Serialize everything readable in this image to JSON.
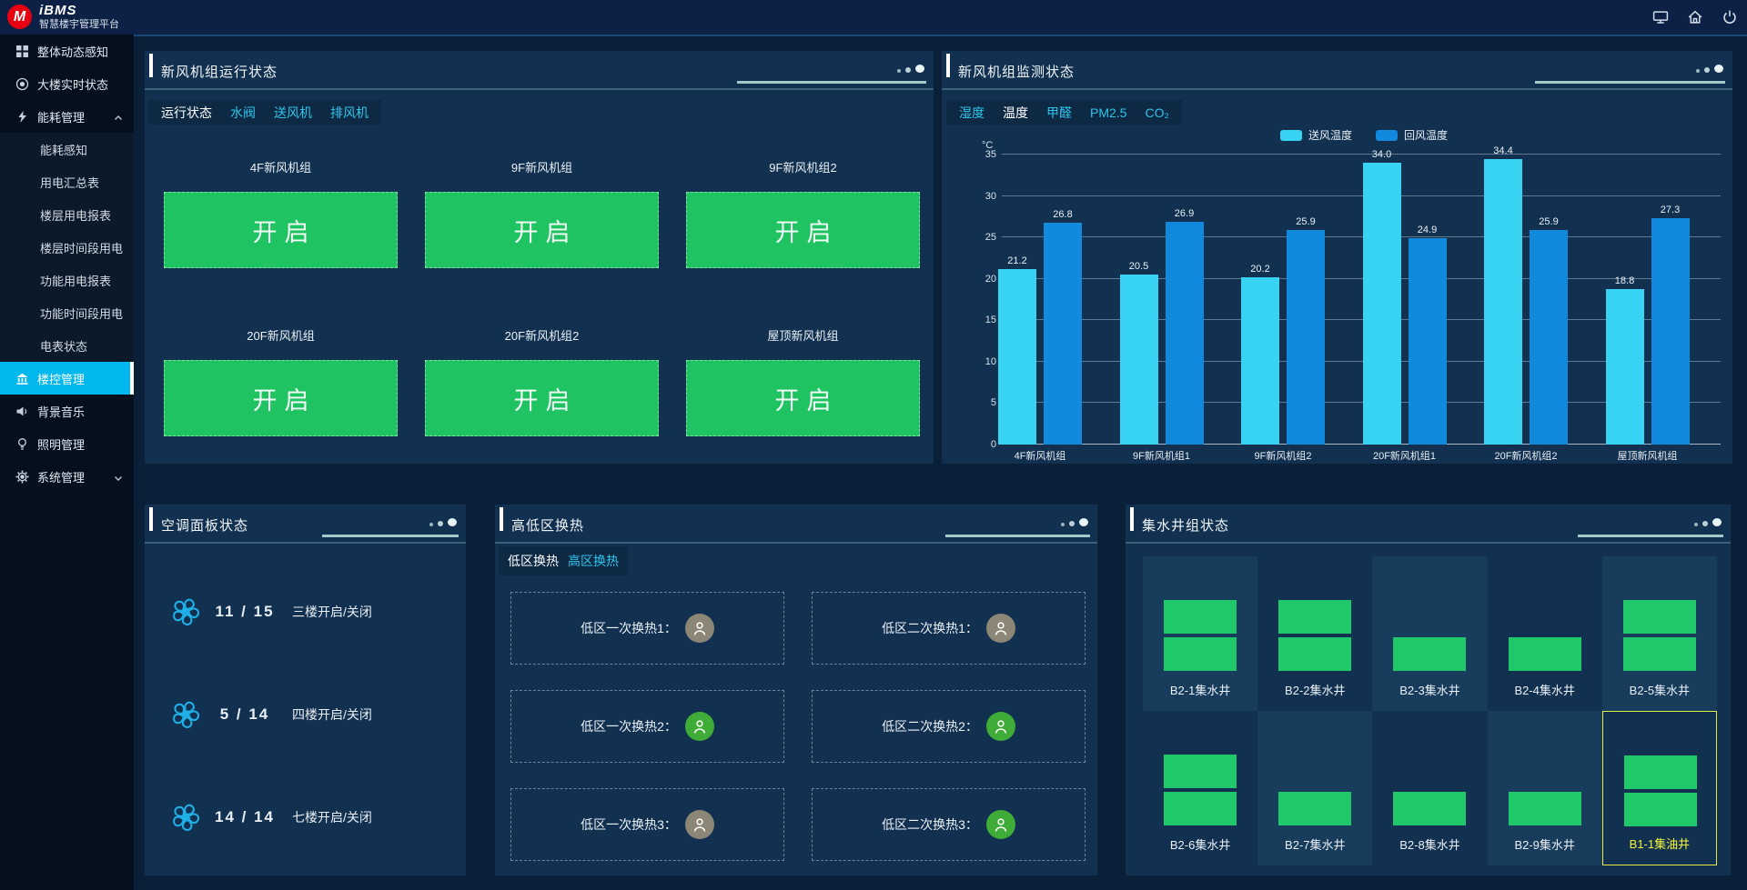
{
  "topbar": {
    "logo_text": "iBMS",
    "logo_subtitle": "智慧楼宇管理平台",
    "icons": [
      "monitor-icon",
      "home-icon",
      "power-icon"
    ]
  },
  "sidebar": {
    "items": [
      {
        "label": "整体动态感知",
        "icon": "grid-icon",
        "type": "item"
      },
      {
        "label": "大楼实时状态",
        "icon": "disc-icon",
        "type": "item"
      },
      {
        "label": "能耗管理",
        "icon": "lightning-icon",
        "type": "group",
        "state": "expanded",
        "children": [
          "能耗感知",
          "用电汇总表",
          "楼层用电报表",
          "楼层时间段用电",
          "功能用电报表",
          "功能时间段用电",
          "电表状态"
        ]
      },
      {
        "label": "楼控管理",
        "icon": "bank-icon",
        "type": "item",
        "active": true
      },
      {
        "label": "背景音乐",
        "icon": "speaker-icon",
        "type": "item"
      },
      {
        "label": "照明管理",
        "icon": "bulb-icon",
        "type": "item"
      },
      {
        "label": "系统管理",
        "icon": "gear-icon",
        "type": "group",
        "state": "collapsed",
        "children": []
      }
    ]
  },
  "panels": {
    "fresh_air_status": {
      "title": "新风机组运行状态",
      "tabs": [
        {
          "label": "运行状态",
          "active": true
        },
        {
          "label": "水阀"
        },
        {
          "label": "送风机"
        },
        {
          "label": "排风机"
        }
      ],
      "units": [
        {
          "name": "4F新风机组",
          "button": "开启"
        },
        {
          "name": "9F新风机组",
          "button": "开启"
        },
        {
          "name": "9F新风机组2",
          "button": "开启"
        },
        {
          "name": "20F新风机组",
          "button": "开启"
        },
        {
          "name": "20F新风机组2",
          "button": "开启"
        },
        {
          "name": "屋顶新风机组",
          "button": "开启"
        }
      ]
    },
    "fresh_air_monitor": {
      "title": "新风机组监测状态",
      "tabs": [
        {
          "label": "湿度"
        },
        {
          "label": "温度",
          "active": true
        },
        {
          "label": "甲醛"
        },
        {
          "label": "PM2.5"
        },
        {
          "label": "CO₂"
        }
      ]
    },
    "ac_panel": {
      "title": "空调面板状态",
      "rows": [
        {
          "count": "11 / 15",
          "label": "三楼开启/关闭"
        },
        {
          "count": "5 / 14",
          "label": "四楼开启/关闭"
        },
        {
          "count": "14 / 14",
          "label": "七楼开启/关闭"
        }
      ]
    },
    "heat_exchange": {
      "title": "高低区换热",
      "tabs": [
        {
          "label": "低区换热",
          "active": true
        },
        {
          "label": "高区换热"
        }
      ],
      "cells": [
        {
          "label": "低区一次换热1：",
          "status": "offline"
        },
        {
          "label": "低区二次换热1：",
          "status": "offline"
        },
        {
          "label": "低区一次换热2：",
          "status": "online"
        },
        {
          "label": "低区二次换热2：",
          "status": "online"
        },
        {
          "label": "低区一次换热3：",
          "status": "offline"
        },
        {
          "label": "低区二次换热3：",
          "status": "online"
        }
      ]
    },
    "sump_wells": {
      "title": "集水井组状态",
      "wells": [
        {
          "label": "B2-1集水井",
          "bars": 2,
          "shaded": true
        },
        {
          "label": "B2-2集水井",
          "bars": 2,
          "shaded": false
        },
        {
          "label": "B2-3集水井",
          "bars": 1,
          "shaded": true
        },
        {
          "label": "B2-4集水井",
          "bars": 1,
          "shaded": false
        },
        {
          "label": "B2-5集水井",
          "bars": 2,
          "shaded": true
        },
        {
          "label": "B2-6集水井",
          "bars": 2,
          "shaded": false
        },
        {
          "label": "B2-7集水井",
          "bars": 1,
          "shaded": true
        },
        {
          "label": "B2-8集水井",
          "bars": 1,
          "shaded": false
        },
        {
          "label": "B2-9集水井",
          "bars": 1,
          "shaded": true
        },
        {
          "label": "B1-1集油井",
          "bars": 2,
          "shaded": false,
          "highlighted": true
        }
      ]
    }
  },
  "chart_data": {
    "type": "bar",
    "title": "新风机组监测状态 - 温度",
    "categories": [
      "4F新风机组",
      "9F新风机组1",
      "9F新风机组2",
      "20F新风机组1",
      "20F新风机组2",
      "屋顶新风机组"
    ],
    "series": [
      {
        "name": "送风温度",
        "color": "#38D3F2",
        "values": [
          21.2,
          20.5,
          20.2,
          34.0,
          34.4,
          18.8
        ]
      },
      {
        "name": "回风温度",
        "color": "#1189DC",
        "values": [
          26.8,
          26.9,
          25.9,
          24.9,
          25.9,
          27.3
        ]
      }
    ],
    "xlabel": "",
    "ylabel": "°C",
    "ylim": [
      0,
      35
    ],
    "yticks": [
      0,
      5,
      10,
      15,
      20,
      25,
      30,
      35
    ],
    "grid": true,
    "legend_position": "top"
  },
  "colors": {
    "active_menu": "#00B7EE",
    "button_green": "#1FC362",
    "bar_supply": "#38D3F2",
    "bar_return": "#1189DC",
    "well_green": "#1FC969",
    "highlight_yellow": "#F5F53B",
    "badge_online": "#3FAC38",
    "badge_offline": "#8C8676",
    "fan_blue": "#1FB0E8",
    "logo_red": "#E60012"
  }
}
